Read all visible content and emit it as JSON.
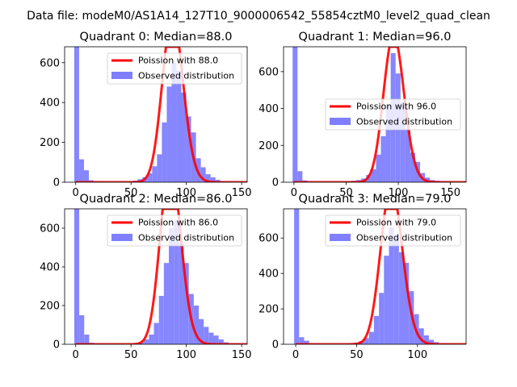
{
  "figure_title": "Data file: modeM0/AS1A14_127T10_9000006542_55854cztM0_level2_quad_clean",
  "colors": {
    "hist": "#7f7fff",
    "poisson": "#ff0000",
    "axis": "#000000",
    "background": "#ffffff"
  },
  "chart_data": [
    {
      "type": "bar",
      "title": "Quadrant 0: Median=88.0",
      "median": 88.0,
      "xlim": [
        -10,
        155
      ],
      "ylim": [
        0,
        680
      ],
      "xticks": [
        0,
        50,
        100,
        150
      ],
      "yticks": [
        0,
        200,
        400,
        600
      ],
      "bin_width": 4.4,
      "bins": [
        [
          -1.3,
          680
        ],
        [
          3.1,
          115
        ],
        [
          7.5,
          60
        ],
        [
          11.9,
          10
        ],
        [
          16.3,
          5
        ],
        [
          20.7,
          3
        ],
        [
          25.1,
          2
        ],
        [
          29.5,
          1
        ],
        [
          33.9,
          1
        ],
        [
          38.3,
          1
        ],
        [
          42.7,
          2
        ],
        [
          47.1,
          3
        ],
        [
          51.5,
          8
        ],
        [
          55.9,
          15
        ],
        [
          60.3,
          25
        ],
        [
          64.7,
          45
        ],
        [
          69.1,
          80
        ],
        [
          73.5,
          140
        ],
        [
          77.9,
          300
        ],
        [
          82.3,
          480
        ],
        [
          86.7,
          600
        ],
        [
          91.1,
          560
        ],
        [
          95.5,
          450
        ],
        [
          99.9,
          330
        ],
        [
          104.3,
          250
        ],
        [
          108.7,
          120
        ],
        [
          113.1,
          75
        ],
        [
          117.5,
          40
        ],
        [
          121.9,
          25
        ],
        [
          126.3,
          12
        ],
        [
          130.7,
          6
        ],
        [
          135.1,
          3
        ],
        [
          139.5,
          2
        ]
      ],
      "legend": {
        "position": "top-right",
        "line_label": "Poission with 88.0",
        "hist_label": "Observed distribution"
      }
    },
    {
      "type": "bar",
      "title": "Quadrant 1: Median=96.0",
      "median": 96.0,
      "xlim": [
        -10,
        165
      ],
      "ylim": [
        0,
        735
      ],
      "xticks": [
        0,
        50,
        100,
        150
      ],
      "yticks": [
        0,
        200,
        400,
        600
      ],
      "bin_width": 4.7,
      "bins": [
        [
          -1.3,
          735
        ],
        [
          3.4,
          60
        ],
        [
          8.1,
          10
        ],
        [
          12.8,
          4
        ],
        [
          17.5,
          2
        ],
        [
          22.2,
          1
        ],
        [
          26.9,
          1
        ],
        [
          31.6,
          1
        ],
        [
          36.3,
          1
        ],
        [
          41.0,
          1
        ],
        [
          45.7,
          2
        ],
        [
          50.4,
          4
        ],
        [
          55.1,
          8
        ],
        [
          59.8,
          12
        ],
        [
          64.5,
          20
        ],
        [
          69.2,
          40
        ],
        [
          73.9,
          70
        ],
        [
          78.6,
          150
        ],
        [
          83.3,
          250
        ],
        [
          88.0,
          420
        ],
        [
          92.7,
          700
        ],
        [
          97.4,
          590
        ],
        [
          102.1,
          430
        ],
        [
          106.8,
          290
        ],
        [
          111.5,
          160
        ],
        [
          116.2,
          110
        ],
        [
          120.9,
          50
        ],
        [
          125.6,
          25
        ],
        [
          130.3,
          12
        ],
        [
          135.0,
          8
        ],
        [
          139.7,
          4
        ],
        [
          144.4,
          2
        ],
        [
          149.1,
          1
        ]
      ],
      "legend": {
        "position": "center-right",
        "line_label": "Poission with 96.0",
        "hist_label": "Observed distribution"
      }
    },
    {
      "type": "bar",
      "title": "Quadrant 2: Median=86.0",
      "median": 86.0,
      "xlim": [
        -10,
        155
      ],
      "ylim": [
        0,
        700
      ],
      "xticks": [
        0,
        50,
        100,
        150
      ],
      "yticks": [
        0,
        200,
        400,
        600
      ],
      "bin_width": 4.5,
      "bins": [
        [
          -1.3,
          700
        ],
        [
          3.2,
          150
        ],
        [
          7.7,
          50
        ],
        [
          12.2,
          8
        ],
        [
          16.7,
          4
        ],
        [
          21.2,
          2
        ],
        [
          25.7,
          1
        ],
        [
          30.2,
          1
        ],
        [
          34.7,
          1
        ],
        [
          39.2,
          1
        ],
        [
          43.7,
          1
        ],
        [
          48.2,
          2
        ],
        [
          52.7,
          5
        ],
        [
          57.2,
          10
        ],
        [
          61.7,
          25
        ],
        [
          66.2,
          50
        ],
        [
          70.7,
          110
        ],
        [
          75.2,
          250
        ],
        [
          79.7,
          420
        ],
        [
          84.2,
          600
        ],
        [
          88.7,
          640
        ],
        [
          93.2,
          520
        ],
        [
          97.7,
          420
        ],
        [
          102.2,
          260
        ],
        [
          106.7,
          200
        ],
        [
          111.2,
          130
        ],
        [
          115.7,
          90
        ],
        [
          120.2,
          60
        ],
        [
          124.7,
          45
        ],
        [
          129.2,
          25
        ],
        [
          133.7,
          10
        ],
        [
          138.2,
          5
        ],
        [
          142.7,
          3
        ],
        [
          147.2,
          1
        ]
      ],
      "legend": {
        "position": "top-right",
        "line_label": "Poission with 86.0",
        "hist_label": "Observed distribution"
      }
    },
    {
      "type": "bar",
      "title": "Quadrant 3: Median=79.0",
      "median": 79.0,
      "xlim": [
        -10,
        140
      ],
      "ylim": [
        0,
        765
      ],
      "xticks": [
        0,
        50,
        100
      ],
      "yticks": [
        0,
        200,
        400,
        600
      ],
      "bin_width": 4.1,
      "bins": [
        [
          -1.3,
          765
        ],
        [
          2.8,
          40
        ],
        [
          6.9,
          20
        ],
        [
          11.0,
          5
        ],
        [
          15.1,
          3
        ],
        [
          19.2,
          2
        ],
        [
          23.3,
          1
        ],
        [
          27.4,
          1
        ],
        [
          31.5,
          1
        ],
        [
          35.6,
          2
        ],
        [
          39.7,
          3
        ],
        [
          43.8,
          5
        ],
        [
          47.9,
          10
        ],
        [
          52.0,
          18
        ],
        [
          56.1,
          35
        ],
        [
          60.2,
          70
        ],
        [
          64.3,
          160
        ],
        [
          68.4,
          290
        ],
        [
          72.5,
          500
        ],
        [
          76.6,
          660
        ],
        [
          80.7,
          620
        ],
        [
          84.8,
          520
        ],
        [
          88.9,
          460
        ],
        [
          93.0,
          300
        ],
        [
          97.1,
          170
        ],
        [
          101.2,
          90
        ],
        [
          105.3,
          50
        ],
        [
          109.4,
          25
        ],
        [
          113.5,
          12
        ],
        [
          117.6,
          6
        ],
        [
          121.7,
          3
        ],
        [
          125.8,
          1
        ]
      ],
      "legend": {
        "position": "top-right",
        "line_label": "Poission with 79.0",
        "hist_label": "Observed distribution"
      }
    }
  ]
}
